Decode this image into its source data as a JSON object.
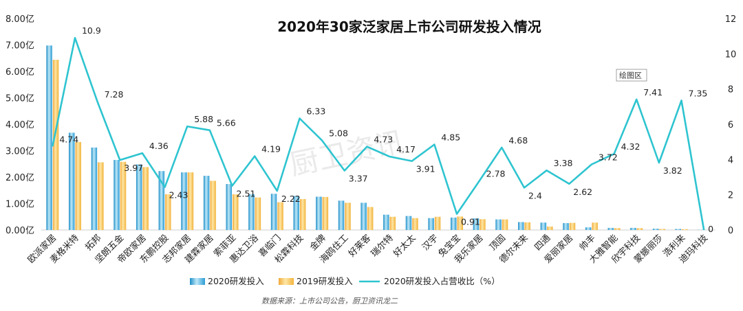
{
  "chart_data": {
    "type": "bar",
    "title": "2020年30家泛家居上市公司研发投入情况",
    "categories": [
      "欧派家居",
      "麦格米特",
      "拓邦",
      "坚朗五金",
      "帝欧家居",
      "东鹏控股",
      "志邦家居",
      "建霖家居",
      "索菲亚",
      "惠达卫浴",
      "喜临门",
      "松霖科技",
      "金牌",
      "海鸥住工",
      "好莱客",
      "瑞尔特",
      "好太太",
      "汉宇",
      "兔宝宝",
      "我乐家居",
      "顶固",
      "德尔未来",
      "四通",
      "爱丽家居",
      "帅丰",
      "大雅智能",
      "欣宇科技",
      "蒙娜丽莎",
      "浩利来",
      "迪玛科技"
    ],
    "series": [
      {
        "name": "2020研发投入",
        "axis": "left",
        "color": "#4aaedc",
        "values": [
          6.98,
          3.68,
          3.12,
          2.65,
          2.48,
          2.23,
          2.18,
          2.05,
          1.74,
          1.36,
          1.37,
          1.29,
          1.26,
          1.11,
          1.03,
          0.58,
          0.53,
          0.45,
          0.47,
          0.44,
          0.4,
          0.3,
          0.28,
          0.26,
          0.1,
          0.08,
          0.08,
          0.05,
          0.04,
          0.01
        ]
      },
      {
        "name": "2019研发投入",
        "axis": "left",
        "color": "#f5c042",
        "values": [
          6.44,
          3.33,
          2.56,
          2.58,
          2.38,
          1.35,
          2.18,
          1.86,
          1.35,
          1.23,
          1.05,
          1.17,
          1.25,
          1.03,
          0.87,
          0.5,
          0.45,
          0.5,
          0.51,
          0.41,
          0.4,
          0.29,
          0.13,
          0.27,
          0.28,
          0.07,
          0.07,
          0.04,
          0.03,
          0.0
        ]
      },
      {
        "name": "2020研发投入占营收比（%）",
        "axis": "right",
        "color": "#2ec4d0",
        "values": [
          4.74,
          10.9,
          7.28,
          3.97,
          4.36,
          2.43,
          5.88,
          5.66,
          2.51,
          4.19,
          2.22,
          6.33,
          5.08,
          3.37,
          4.73,
          4.17,
          3.91,
          4.85,
          0.91,
          2.78,
          4.68,
          2.4,
          3.38,
          2.62,
          3.72,
          4.32,
          7.41,
          3.82,
          7.35,
          0
        ]
      }
    ],
    "line_labels": [
      "4.74",
      "10.9",
      "7.28",
      "3.97",
      "4.36",
      "2.43",
      "5.88",
      "5.66",
      "2.51",
      "4.19",
      "2.22",
      "6.33",
      "5.08",
      "3.37",
      "4.73",
      "4.17",
      "3.91",
      "4.85",
      "0.91",
      "2.78",
      "4.68",
      "2.4",
      "3.38",
      "2.62",
      "3.72",
      "4.32",
      "7.41",
      "3.82",
      "7.35",
      "0"
    ],
    "left_axis": {
      "min": 0,
      "max": 8,
      "ticks": [
        "0.00亿",
        "1.00亿",
        "2.00亿",
        "3.00亿",
        "4.00亿",
        "5.00亿",
        "6.00亿",
        "7.00亿",
        "8.00亿"
      ]
    },
    "right_axis": {
      "min": 0,
      "max": 12,
      "ticks": [
        "0",
        "2",
        "4",
        "6",
        "8",
        "10",
        "12"
      ]
    },
    "grid": false,
    "legend_position": "bottom",
    "watermark": "厨卫资讯",
    "tooltip": "绘图区",
    "source_note": "数据来源：上市公司公告，厨卫资讯龙二"
  }
}
